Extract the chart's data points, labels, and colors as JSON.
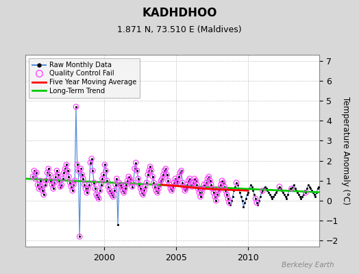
{
  "title": "KADHDHOO",
  "subtitle": "1.871 N, 73.510 E (Maldives)",
  "ylabel": "Temperature Anomaly (°C)",
  "watermark": "Berkeley Earth",
  "ylim": [
    -2.3,
    7.3
  ],
  "xlim": [
    1994.5,
    2015.0
  ],
  "yticks": [
    -2,
    -1,
    0,
    1,
    2,
    3,
    4,
    5,
    6,
    7
  ],
  "xticks": [
    2000,
    2005,
    2010
  ],
  "bg_color": "#d8d8d8",
  "plot_bg_color": "#ffffff",
  "raw_x": [
    1995.042,
    1995.125,
    1995.208,
    1995.292,
    1995.375,
    1995.458,
    1995.542,
    1995.625,
    1995.708,
    1995.792,
    1995.875,
    1995.958,
    1996.042,
    1996.125,
    1996.208,
    1996.292,
    1996.375,
    1996.458,
    1996.542,
    1996.625,
    1996.708,
    1996.792,
    1996.875,
    1996.958,
    1997.042,
    1997.125,
    1997.208,
    1997.292,
    1997.375,
    1997.458,
    1997.542,
    1997.625,
    1997.708,
    1997.792,
    1997.875,
    1997.958,
    1998.042,
    1998.125,
    1998.208,
    1998.292,
    1998.375,
    1998.458,
    1998.542,
    1998.625,
    1998.708,
    1998.792,
    1998.875,
    1998.958,
    1999.042,
    1999.125,
    1999.208,
    1999.292,
    1999.375,
    1999.458,
    1999.542,
    1999.625,
    1999.708,
    1999.792,
    1999.875,
    1999.958,
    2000.042,
    2000.125,
    2000.208,
    2000.292,
    2000.375,
    2000.458,
    2000.542,
    2000.625,
    2000.708,
    2000.792,
    2000.875,
    2000.958,
    2001.042,
    2001.125,
    2001.208,
    2001.292,
    2001.375,
    2001.458,
    2001.542,
    2001.625,
    2001.708,
    2001.792,
    2001.875,
    2001.958,
    2002.042,
    2002.125,
    2002.208,
    2002.292,
    2002.375,
    2002.458,
    2002.542,
    2002.625,
    2002.708,
    2002.792,
    2002.875,
    2002.958,
    2003.042,
    2003.125,
    2003.208,
    2003.292,
    2003.375,
    2003.458,
    2003.542,
    2003.625,
    2003.708,
    2003.792,
    2003.875,
    2003.958,
    2004.042,
    2004.125,
    2004.208,
    2004.292,
    2004.375,
    2004.458,
    2004.542,
    2004.625,
    2004.708,
    2004.792,
    2004.875,
    2004.958,
    2005.042,
    2005.125,
    2005.208,
    2005.292,
    2005.375,
    2005.458,
    2005.542,
    2005.625,
    2005.708,
    2005.792,
    2005.875,
    2005.958,
    2006.042,
    2006.125,
    2006.208,
    2006.292,
    2006.375,
    2006.458,
    2006.542,
    2006.625,
    2006.708,
    2006.792,
    2006.875,
    2006.958,
    2007.042,
    2007.125,
    2007.208,
    2007.292,
    2007.375,
    2007.458,
    2007.542,
    2007.625,
    2007.708,
    2007.792,
    2007.875,
    2007.958,
    2008.042,
    2008.125,
    2008.208,
    2008.292,
    2008.375,
    2008.458,
    2008.542,
    2008.625,
    2008.708,
    2008.792,
    2008.875,
    2008.958,
    2009.042,
    2009.125,
    2009.208,
    2009.292,
    2009.375,
    2009.458,
    2009.542,
    2009.625,
    2009.708,
    2009.792,
    2009.875,
    2009.958,
    2010.042,
    2010.125,
    2010.208,
    2010.292,
    2010.375,
    2010.458,
    2010.542,
    2010.625,
    2010.708,
    2010.792,
    2010.875,
    2010.958,
    2011.042,
    2011.125,
    2011.208,
    2011.292,
    2011.375,
    2011.458,
    2011.542,
    2011.625,
    2011.708,
    2011.792,
    2011.875,
    2011.958,
    2012.042,
    2012.125,
    2012.208,
    2012.292,
    2012.375,
    2012.458,
    2012.542,
    2012.625,
    2012.708,
    2012.792,
    2012.875,
    2012.958,
    2013.042,
    2013.125,
    2013.208,
    2013.292,
    2013.375,
    2013.458,
    2013.542,
    2013.625,
    2013.708,
    2013.792,
    2013.875,
    2013.958,
    2014.042,
    2014.125,
    2014.208,
    2014.292,
    2014.375,
    2014.458,
    2014.542,
    2014.625,
    2014.708,
    2014.792,
    2014.875,
    2014.958
  ],
  "raw_y": [
    1.2,
    1.5,
    1.1,
    1.4,
    0.8,
    0.6,
    1.0,
    0.7,
    0.5,
    0.3,
    0.8,
    1.0,
    1.4,
    1.6,
    1.3,
    1.0,
    0.8,
    0.6,
    0.9,
    1.2,
    1.5,
    1.3,
    1.0,
    0.7,
    0.8,
    1.1,
    1.4,
    1.6,
    1.8,
    1.5,
    1.2,
    0.9,
    0.7,
    0.5,
    0.8,
    1.0,
    4.7,
    1.8,
    1.5,
    -1.8,
    1.6,
    1.3,
    1.1,
    0.8,
    0.6,
    0.4,
    0.6,
    0.8,
    1.9,
    2.1,
    1.5,
    0.9,
    0.6,
    0.3,
    0.2,
    0.1,
    0.5,
    0.8,
    1.1,
    1.3,
    1.8,
    1.5,
    1.0,
    0.7,
    0.5,
    0.4,
    0.3,
    0.2,
    0.5,
    0.8,
    1.1,
    -1.2,
    0.9,
    0.8,
    0.7,
    0.5,
    0.4,
    0.6,
    0.8,
    1.0,
    1.2,
    1.1,
    0.9,
    0.7,
    0.9,
    1.6,
    1.9,
    1.5,
    1.1,
    0.8,
    0.6,
    0.4,
    0.3,
    0.5,
    0.7,
    0.9,
    1.3,
    1.5,
    1.7,
    1.5,
    1.2,
    0.9,
    0.7,
    0.5,
    0.4,
    0.6,
    0.8,
    1.0,
    1.1,
    1.3,
    1.5,
    1.6,
    1.3,
    1.0,
    0.8,
    0.6,
    0.5,
    0.7,
    0.9,
    1.1,
    0.9,
    1.0,
    1.2,
    1.4,
    1.5,
    0.9,
    0.7,
    0.5,
    0.6,
    0.8,
    1.0,
    1.1,
    0.8,
    0.7,
    0.9,
    1.1,
    1.0,
    0.8,
    0.6,
    0.4,
    0.2,
    0.4,
    0.6,
    0.8,
    0.7,
    0.9,
    1.1,
    1.2,
    1.0,
    0.8,
    0.6,
    0.4,
    0.2,
    0.0,
    0.3,
    0.5,
    0.6,
    0.8,
    1.0,
    0.9,
    0.7,
    0.5,
    0.3,
    0.1,
    -0.1,
    -0.2,
    0.0,
    0.2,
    0.5,
    0.7,
    0.9,
    0.8,
    0.6,
    0.4,
    0.2,
    0.0,
    -0.3,
    -0.1,
    0.1,
    0.3,
    0.4,
    0.6,
    0.8,
    0.7,
    0.5,
    0.3,
    0.1,
    -0.1,
    -0.2,
    0.0,
    0.2,
    0.4,
    0.5,
    0.6,
    0.7,
    0.6,
    0.5,
    0.4,
    0.3,
    0.2,
    0.1,
    0.2,
    0.3,
    0.4,
    0.5,
    0.6,
    0.7,
    0.6,
    0.5,
    0.4,
    0.3,
    0.2,
    0.1,
    0.3,
    0.5,
    0.6,
    0.6,
    0.7,
    0.8,
    0.6,
    0.5,
    0.4,
    0.3,
    0.2,
    0.1,
    0.2,
    0.3,
    0.5,
    0.4,
    0.6,
    0.8,
    0.7,
    0.6,
    0.5,
    0.4,
    0.3,
    0.2,
    0.4,
    0.6,
    0.7
  ],
  "qc_x": [
    1995.042,
    1995.125,
    1995.208,
    1995.292,
    1995.375,
    1995.458,
    1995.542,
    1995.625,
    1995.708,
    1995.792,
    1995.875,
    1995.958,
    1996.042,
    1996.125,
    1996.208,
    1996.292,
    1996.375,
    1996.458,
    1996.542,
    1996.625,
    1996.708,
    1996.792,
    1996.875,
    1996.958,
    1997.042,
    1997.125,
    1997.208,
    1997.292,
    1997.375,
    1997.458,
    1997.542,
    1997.625,
    1997.708,
    1997.792,
    1997.875,
    1997.958,
    1998.042,
    1998.125,
    1998.208,
    1998.292,
    1998.375,
    1998.458,
    1998.542,
    1998.625,
    1998.708,
    1998.792,
    1998.875,
    1998.958,
    1999.042,
    1999.125,
    1999.208,
    1999.292,
    1999.375,
    1999.458,
    1999.542,
    1999.625,
    1999.708,
    1999.792,
    1999.875,
    1999.958,
    2000.042,
    2000.125,
    2000.208,
    2000.292,
    2000.375,
    2000.458,
    2000.542,
    2000.625,
    2000.708,
    2000.792,
    2000.875,
    2001.042,
    2001.125,
    2001.208,
    2001.292,
    2001.375,
    2001.458,
    2001.542,
    2001.625,
    2001.708,
    2001.792,
    2001.875,
    2001.958,
    2002.042,
    2002.125,
    2002.208,
    2002.292,
    2002.375,
    2002.458,
    2002.542,
    2002.625,
    2002.708,
    2002.792,
    2002.875,
    2002.958,
    2003.042,
    2003.125,
    2003.208,
    2003.292,
    2003.375,
    2003.458,
    2003.542,
    2003.625,
    2003.708,
    2003.792,
    2003.875,
    2003.958,
    2004.042,
    2004.125,
    2004.208,
    2004.292,
    2004.375,
    2004.458,
    2004.542,
    2004.625,
    2004.708,
    2004.792,
    2004.875,
    2004.958,
    2005.042,
    2005.125,
    2005.208,
    2005.292,
    2005.375,
    2005.458,
    2005.542,
    2005.625,
    2005.708,
    2005.792,
    2005.875,
    2005.958,
    2006.042,
    2006.125,
    2006.208,
    2006.292,
    2006.375,
    2006.458,
    2006.542,
    2006.625,
    2006.708,
    2006.792,
    2006.875,
    2006.958,
    2007.042,
    2007.125,
    2007.208,
    2007.292,
    2007.375,
    2007.458,
    2007.542,
    2007.625,
    2007.708,
    2007.792,
    2007.875,
    2007.958,
    2008.042,
    2008.125,
    2008.208,
    2008.292,
    2008.375,
    2008.458,
    2008.542,
    2008.625,
    2008.708,
    2009.208,
    2010.542,
    2010.625,
    2011.042,
    2012.208,
    2013.042,
    2014.042
  ],
  "qc_y": [
    1.2,
    1.5,
    1.1,
    1.4,
    0.8,
    0.6,
    1.0,
    0.7,
    0.5,
    0.3,
    0.8,
    1.0,
    1.4,
    1.6,
    1.3,
    1.0,
    0.8,
    0.6,
    0.9,
    1.2,
    1.5,
    1.3,
    1.0,
    0.7,
    0.8,
    1.1,
    1.4,
    1.6,
    1.8,
    1.5,
    1.2,
    0.9,
    0.7,
    0.5,
    0.8,
    1.0,
    4.7,
    1.8,
    1.5,
    -1.8,
    1.6,
    1.3,
    1.1,
    0.8,
    0.6,
    0.4,
    0.6,
    0.8,
    1.9,
    2.1,
    1.5,
    0.9,
    0.6,
    0.3,
    0.2,
    0.1,
    0.5,
    0.8,
    1.1,
    1.3,
    1.8,
    1.5,
    1.0,
    0.7,
    0.5,
    0.4,
    0.3,
    0.2,
    0.5,
    0.8,
    1.1,
    0.9,
    0.8,
    0.7,
    0.5,
    0.4,
    0.6,
    0.8,
    1.0,
    1.2,
    1.1,
    0.9,
    0.7,
    0.9,
    1.6,
    1.9,
    1.5,
    1.1,
    0.8,
    0.6,
    0.4,
    0.3,
    0.5,
    0.7,
    0.9,
    1.3,
    1.5,
    1.7,
    1.5,
    1.2,
    0.9,
    0.7,
    0.5,
    0.4,
    0.6,
    0.8,
    1.0,
    1.1,
    1.3,
    1.5,
    1.6,
    1.3,
    1.0,
    0.8,
    0.6,
    0.5,
    0.7,
    0.9,
    1.1,
    0.9,
    1.0,
    1.2,
    1.4,
    1.5,
    0.9,
    0.7,
    0.5,
    0.6,
    0.8,
    1.0,
    1.1,
    0.8,
    0.7,
    0.9,
    1.1,
    1.0,
    0.8,
    0.6,
    0.4,
    0.2,
    0.4,
    0.6,
    0.8,
    0.7,
    0.9,
    1.1,
    1.2,
    1.0,
    0.8,
    0.6,
    0.4,
    0.2,
    0.0,
    0.3,
    0.5,
    0.6,
    0.8,
    1.0,
    0.9,
    0.7,
    0.5,
    0.3,
    0.1,
    -0.1,
    0.9,
    0.1,
    -0.1,
    0.5,
    0.7,
    0.6,
    0.4
  ],
  "trend_x": [
    1994.5,
    2015.0
  ],
  "trend_y": [
    1.1,
    0.42
  ],
  "ma_x": [
    2004.0,
    2004.5,
    2005.0,
    2005.5,
    2006.0,
    2006.5,
    2007.0,
    2007.5,
    2008.0,
    2008.5,
    2009.0,
    2009.5,
    2010.0
  ],
  "ma_y": [
    0.8,
    0.77,
    0.74,
    0.7,
    0.67,
    0.63,
    0.6,
    0.58,
    0.56,
    0.55,
    0.53,
    0.52,
    0.5
  ]
}
